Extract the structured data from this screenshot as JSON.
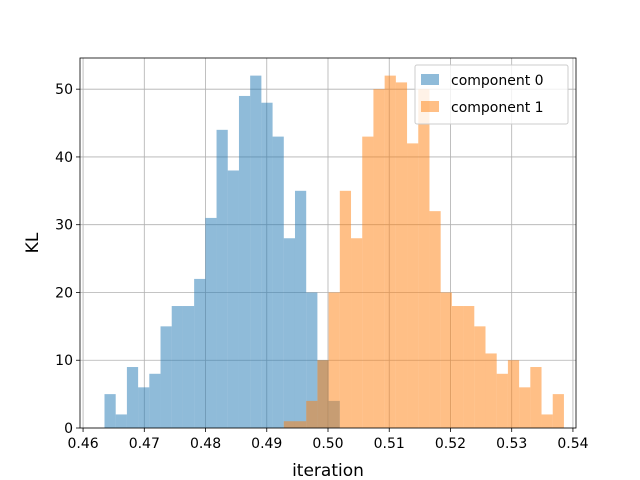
{
  "chart_data": {
    "type": "bar",
    "title": "",
    "xlabel": "iteration",
    "ylabel": "KL",
    "xlim": [
      0.4595,
      0.5405
    ],
    "ylim": [
      0,
      54.6
    ],
    "xticks": [
      0.46,
      0.47,
      0.48,
      0.49,
      0.5,
      0.51,
      0.52,
      0.53,
      0.54
    ],
    "xtick_labels": [
      "0.46",
      "0.47",
      "0.48",
      "0.49",
      "0.50",
      "0.51",
      "0.52",
      "0.53",
      "0.54"
    ],
    "yticks": [
      0,
      10,
      20,
      30,
      40,
      50
    ],
    "ytick_labels": [
      "0",
      "10",
      "20",
      "30",
      "40",
      "50"
    ],
    "grid": true,
    "legend_position": "top-right",
    "series": [
      {
        "name": "component 0",
        "color": "#1f77b4",
        "opacity": 0.5,
        "bin_start": 0.4635,
        "bin_width": 0.00183,
        "counts": [
          5,
          2,
          9,
          6,
          8,
          15,
          18,
          18,
          22,
          31,
          44,
          38,
          49,
          52,
          48,
          43,
          28,
          35,
          20,
          10,
          4
        ]
      },
      {
        "name": "component 1",
        "color": "#ff7f0e",
        "opacity": 0.5,
        "bin_start": 0.4635,
        "bin_width": 0.00183,
        "counts": [
          0,
          0,
          0,
          0,
          0,
          0,
          0,
          0,
          0,
          0,
          0,
          0,
          0,
          0,
          0,
          0,
          1,
          1,
          4,
          10,
          20,
          35,
          28,
          43,
          50,
          52,
          51,
          42,
          50,
          32,
          20,
          18,
          18,
          15,
          11,
          8,
          10,
          6,
          9,
          2,
          5
        ]
      }
    ]
  }
}
